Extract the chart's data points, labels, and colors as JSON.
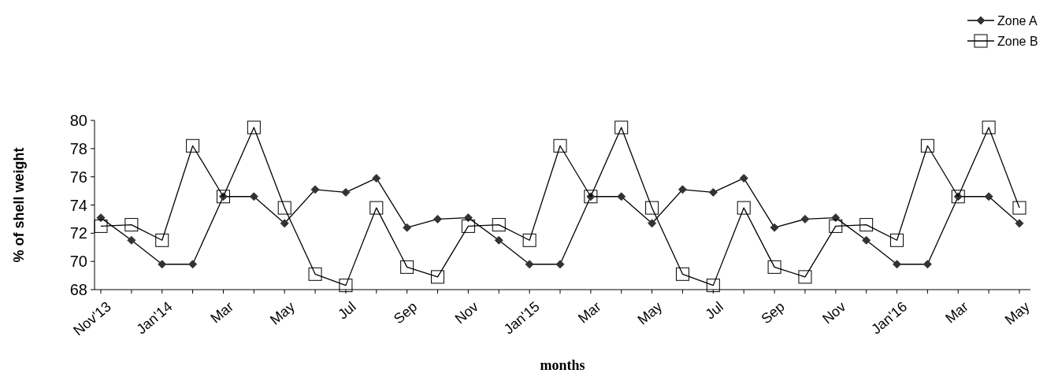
{
  "chart_data": {
    "type": "line",
    "xlabel": "months",
    "ylabel": "% of shell weight",
    "categories": [
      "Nov'13",
      null,
      "Jan'14",
      null,
      "Mar",
      null,
      "May",
      null,
      "Jul",
      null,
      "Sep",
      null,
      "Nov",
      null,
      "Jan'15",
      null,
      "Mar",
      null,
      "May",
      null,
      "Jul",
      null,
      "Sep",
      null,
      "Nov",
      null,
      "Jan'16",
      null,
      "Mar",
      null,
      "May"
    ],
    "series": [
      {
        "name": "Zone A",
        "color": "#333333",
        "marker": "diamond",
        "values": [
          73.1,
          71.5,
          69.8,
          69.8,
          74.6,
          74.6,
          72.7,
          75.1,
          74.9,
          75.9,
          72.4,
          73.0,
          73.1,
          71.5,
          69.8,
          69.8,
          74.6,
          74.6,
          72.7,
          75.1,
          74.9,
          75.9,
          72.4,
          73.0,
          73.1,
          71.5,
          69.8,
          69.8,
          74.6,
          74.6,
          72.7
        ]
      },
      {
        "name": "Zone B",
        "color": "#000000",
        "marker": "square",
        "values": [
          72.5,
          72.6,
          71.5,
          78.2,
          74.6,
          79.5,
          73.8,
          69.1,
          68.3,
          73.8,
          69.6,
          68.9,
          72.5,
          72.6,
          71.5,
          78.2,
          74.6,
          79.5,
          73.8,
          69.1,
          68.3,
          73.8,
          69.6,
          68.9,
          72.5,
          72.6,
          71.5,
          78.2,
          74.6,
          79.5,
          73.8
        ]
      }
    ],
    "ylim": [
      68,
      80
    ],
    "yticks": [
      68,
      70,
      72,
      74,
      76,
      78,
      80
    ],
    "grid": false,
    "legend": "top right",
    "line_style": "solid"
  }
}
